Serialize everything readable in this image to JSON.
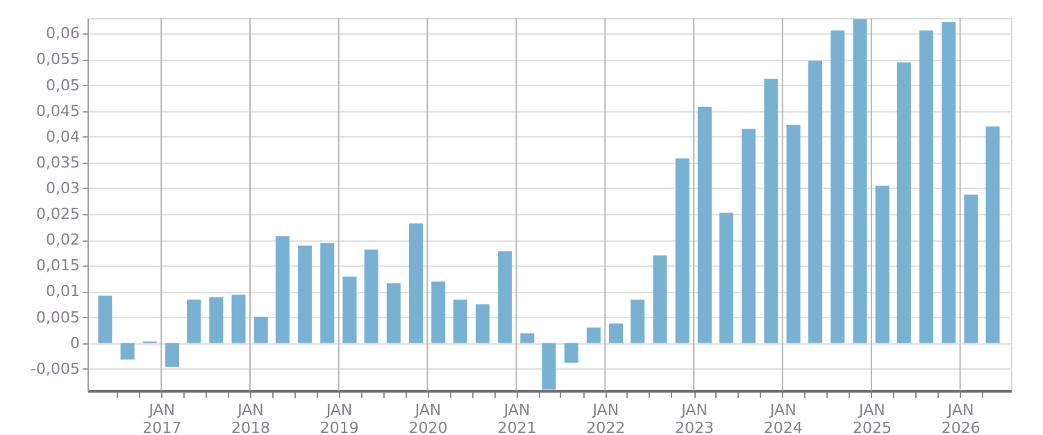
{
  "chart_data": {
    "type": "bar",
    "x": [
      "2016-05-15",
      "2016-08-15",
      "2016-11-15",
      "2017-02-15",
      "2017-05-15",
      "2017-08-15",
      "2017-11-15",
      "2018-02-15",
      "2018-05-15",
      "2018-08-15",
      "2018-11-15",
      "2019-02-15",
      "2019-05-15",
      "2019-08-15",
      "2019-11-15",
      "2020-02-15",
      "2020-05-15",
      "2020-08-15",
      "2020-11-15",
      "2021-02-15",
      "2021-05-15",
      "2021-08-15",
      "2021-11-15",
      "2022-02-15",
      "2022-05-15",
      "2022-08-15",
      "2022-11-15",
      "2023-02-15",
      "2023-05-15",
      "2023-08-15",
      "2023-11-15",
      "2024-02-15",
      "2024-05-15",
      "2024-08-15",
      "2024-11-15",
      "2025-02-15",
      "2025-05-15",
      "2025-08-15",
      "2025-11-15",
      "2026-02-15",
      "2026-05-15"
    ],
    "series": [
      {
        "color": "#79b1d3",
        "values": [
          0.0092,
          -0.0032,
          0.0003,
          -0.0046,
          0.0084,
          0.0089,
          0.0094,
          0.0051,
          0.0207,
          0.0189,
          0.0194,
          0.0129,
          0.0181,
          0.0116,
          0.0232,
          0.0119,
          0.0084,
          0.0075,
          0.0178,
          0.0019,
          -0.009,
          -0.0038,
          0.003,
          0.0038,
          0.0084,
          0.017,
          0.0358,
          0.0458,
          0.0253,
          0.0415,
          0.0512,
          0.0423,
          0.0547,
          0.0606,
          0.0628,
          0.0305,
          0.0544,
          0.0606,
          0.0622,
          0.0288,
          0.042
        ]
      }
    ],
    "xlim": [
      "2016-04-01",
      "2026-07-01"
    ],
    "xticks": [
      {
        "value": "2016-07-01",
        "label": null
      },
      {
        "value": "2016-10-01",
        "label": null
      },
      {
        "value": "2017-01-01",
        "label": "JAN 2017"
      },
      {
        "value": "2017-04-01",
        "label": null
      },
      {
        "value": "2017-07-01",
        "label": null
      },
      {
        "value": "2017-10-01",
        "label": null
      },
      {
        "value": "2018-01-01",
        "label": "JAN 2018"
      },
      {
        "value": "2018-04-01",
        "label": null
      },
      {
        "value": "2018-07-01",
        "label": null
      },
      {
        "value": "2018-10-01",
        "label": null
      },
      {
        "value": "2019-01-01",
        "label": "JAN 2019"
      },
      {
        "value": "2019-04-01",
        "label": null
      },
      {
        "value": "2019-07-01",
        "label": null
      },
      {
        "value": "2019-10-01",
        "label": null
      },
      {
        "value": "2020-01-01",
        "label": "JAN 2020"
      },
      {
        "value": "2020-04-01",
        "label": null
      },
      {
        "value": "2020-07-01",
        "label": null
      },
      {
        "value": "2020-10-01",
        "label": null
      },
      {
        "value": "2021-01-01",
        "label": "JAN 2021"
      },
      {
        "value": "2021-04-01",
        "label": null
      },
      {
        "value": "2021-07-01",
        "label": null
      },
      {
        "value": "2021-10-01",
        "label": null
      },
      {
        "value": "2022-01-01",
        "label": "JAN 2022"
      },
      {
        "value": "2022-04-01",
        "label": null
      },
      {
        "value": "2022-07-01",
        "label": null
      },
      {
        "value": "2022-10-01",
        "label": null
      },
      {
        "value": "2023-01-01",
        "label": "JAN 2023"
      },
      {
        "value": "2023-04-01",
        "label": null
      },
      {
        "value": "2023-07-01",
        "label": null
      },
      {
        "value": "2023-10-01",
        "label": null
      },
      {
        "value": "2024-01-01",
        "label": "JAN 2024"
      },
      {
        "value": "2024-04-01",
        "label": null
      },
      {
        "value": "2024-07-01",
        "label": null
      },
      {
        "value": "2024-10-01",
        "label": null
      },
      {
        "value": "2025-01-01",
        "label": "JAN 2025"
      },
      {
        "value": "2025-04-01",
        "label": null
      },
      {
        "value": "2025-07-01",
        "label": null
      },
      {
        "value": "2025-10-01",
        "label": null
      },
      {
        "value": "2026-01-01",
        "label": "JAN 2026"
      },
      {
        "value": "2026-04-01",
        "label": null
      }
    ],
    "ylim": [
      -0.0092,
      0.063
    ],
    "yticks": [
      {
        "value": -0.005,
        "label": "-0,005"
      },
      {
        "value": 0,
        "label": "0"
      },
      {
        "value": 0.005,
        "label": "0,005"
      },
      {
        "value": 0.01,
        "label": "0,01"
      },
      {
        "value": 0.015,
        "label": "0,015"
      },
      {
        "value": 0.02,
        "label": "0,02"
      },
      {
        "value": 0.025,
        "label": "0,025"
      },
      {
        "value": 0.03,
        "label": "0,03"
      },
      {
        "value": 0.035,
        "label": "0,035"
      },
      {
        "value": 0.04,
        "label": "0,04"
      },
      {
        "value": 0.045,
        "label": "0,045"
      },
      {
        "value": 0.05,
        "label": "0,05"
      },
      {
        "value": 0.055,
        "label": "0,055"
      },
      {
        "value": 0.06,
        "label": "0,06"
      }
    ],
    "grid": true
  }
}
